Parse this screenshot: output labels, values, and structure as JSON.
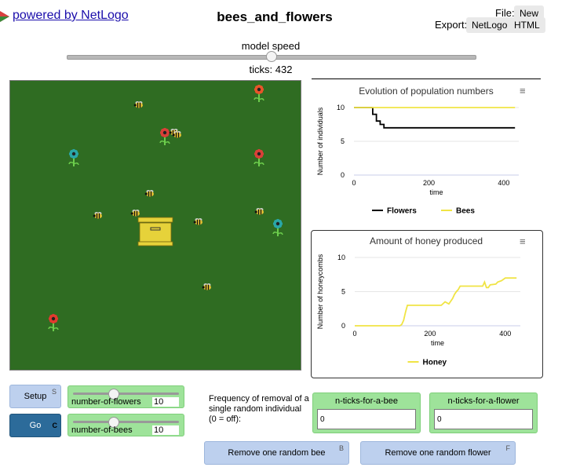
{
  "header": {
    "powered_link": "powered by NetLogo",
    "model_title": "bees_and_flowers",
    "file_label": "File:",
    "new_button": "New",
    "export_label": "Export:",
    "export_netlogo": "NetLogo",
    "export_html": "HTML"
  },
  "speed": {
    "label": "model speed",
    "ticks_text": "ticks: 432",
    "value_fraction": 0.5
  },
  "plots": [
    {
      "title": "Evolution of population numbers",
      "menu_icon": "hamburger-menu-icon"
    },
    {
      "title": "Amount of honey produced",
      "menu_icon": "hamburger-menu-icon"
    }
  ],
  "chart_data": [
    {
      "type": "line",
      "title": "Evolution of population numbers",
      "xlabel": "time",
      "ylabel": "Number of individuals",
      "xlim": [
        0,
        440
      ],
      "ylim": [
        0,
        10
      ],
      "xticks": [
        "0",
        "200",
        "400"
      ],
      "yticks": [
        "0",
        "5",
        "10"
      ],
      "legend_position": "bottom",
      "series": [
        {
          "name": "Flowers",
          "color": "#000000",
          "x": [
            0,
            50,
            50,
            60,
            60,
            70,
            70,
            80,
            80,
            430
          ],
          "y": [
            10,
            10,
            9,
            9,
            8,
            8,
            7.5,
            7.5,
            7,
            7
          ]
        },
        {
          "name": "Bees",
          "color": "#f0e444",
          "x": [
            0,
            430
          ],
          "y": [
            10,
            10
          ]
        }
      ]
    },
    {
      "type": "line",
      "title": "Amount of honey produced",
      "xlabel": "time",
      "ylabel": "Number of honeycombs",
      "xlim": [
        0,
        440
      ],
      "ylim": [
        0,
        10
      ],
      "xticks": [
        "0",
        "200",
        "400"
      ],
      "yticks": [
        "0",
        "5",
        "10"
      ],
      "legend_position": "bottom",
      "series": [
        {
          "name": "Honey",
          "color": "#f0e444",
          "x": [
            0,
            120,
            125,
            130,
            135,
            140,
            220,
            230,
            240,
            250,
            260,
            265,
            270,
            275,
            280,
            290,
            300,
            340,
            345,
            350,
            355,
            360,
            375,
            380,
            390,
            400,
            430
          ],
          "y": [
            0,
            0,
            0.2,
            0.8,
            2,
            3,
            3,
            3,
            3.5,
            3.2,
            4,
            4.6,
            5,
            5.3,
            5.8,
            5.8,
            5.8,
            5.8,
            6.4,
            5.6,
            5.6,
            6,
            6.1,
            6.4,
            6.6,
            7,
            7
          ]
        }
      ]
    }
  ],
  "controls": {
    "setup_label": "Setup",
    "setup_key": "S",
    "go_label": "Go",
    "go_key": "C",
    "flowers_slider": {
      "name": "number-of-flowers",
      "value": "10",
      "fraction": 0.38
    },
    "bees_slider": {
      "name": "number-of-bees",
      "value": "10",
      "fraction": 0.38
    },
    "removal_note": "Frequency of removal of a single random individual (0 = off):",
    "ticks_bee": {
      "label": "n-ticks-for-a-bee",
      "value": "0"
    },
    "ticks_flower": {
      "label": "n-ticks-for-a-flower",
      "value": "0"
    },
    "remove_bee": {
      "label": "Remove one random bee",
      "key": "B"
    },
    "remove_flower": {
      "label": "Remove one random flower",
      "key": "F"
    }
  },
  "world": {
    "background_color": "#2f6c22",
    "flower_colors": [
      "#e8552a",
      "#d94038",
      "#2aa6a8",
      "#e23a2e"
    ],
    "bee_color": "#e3c132",
    "hive_color": "#e6d23a"
  }
}
